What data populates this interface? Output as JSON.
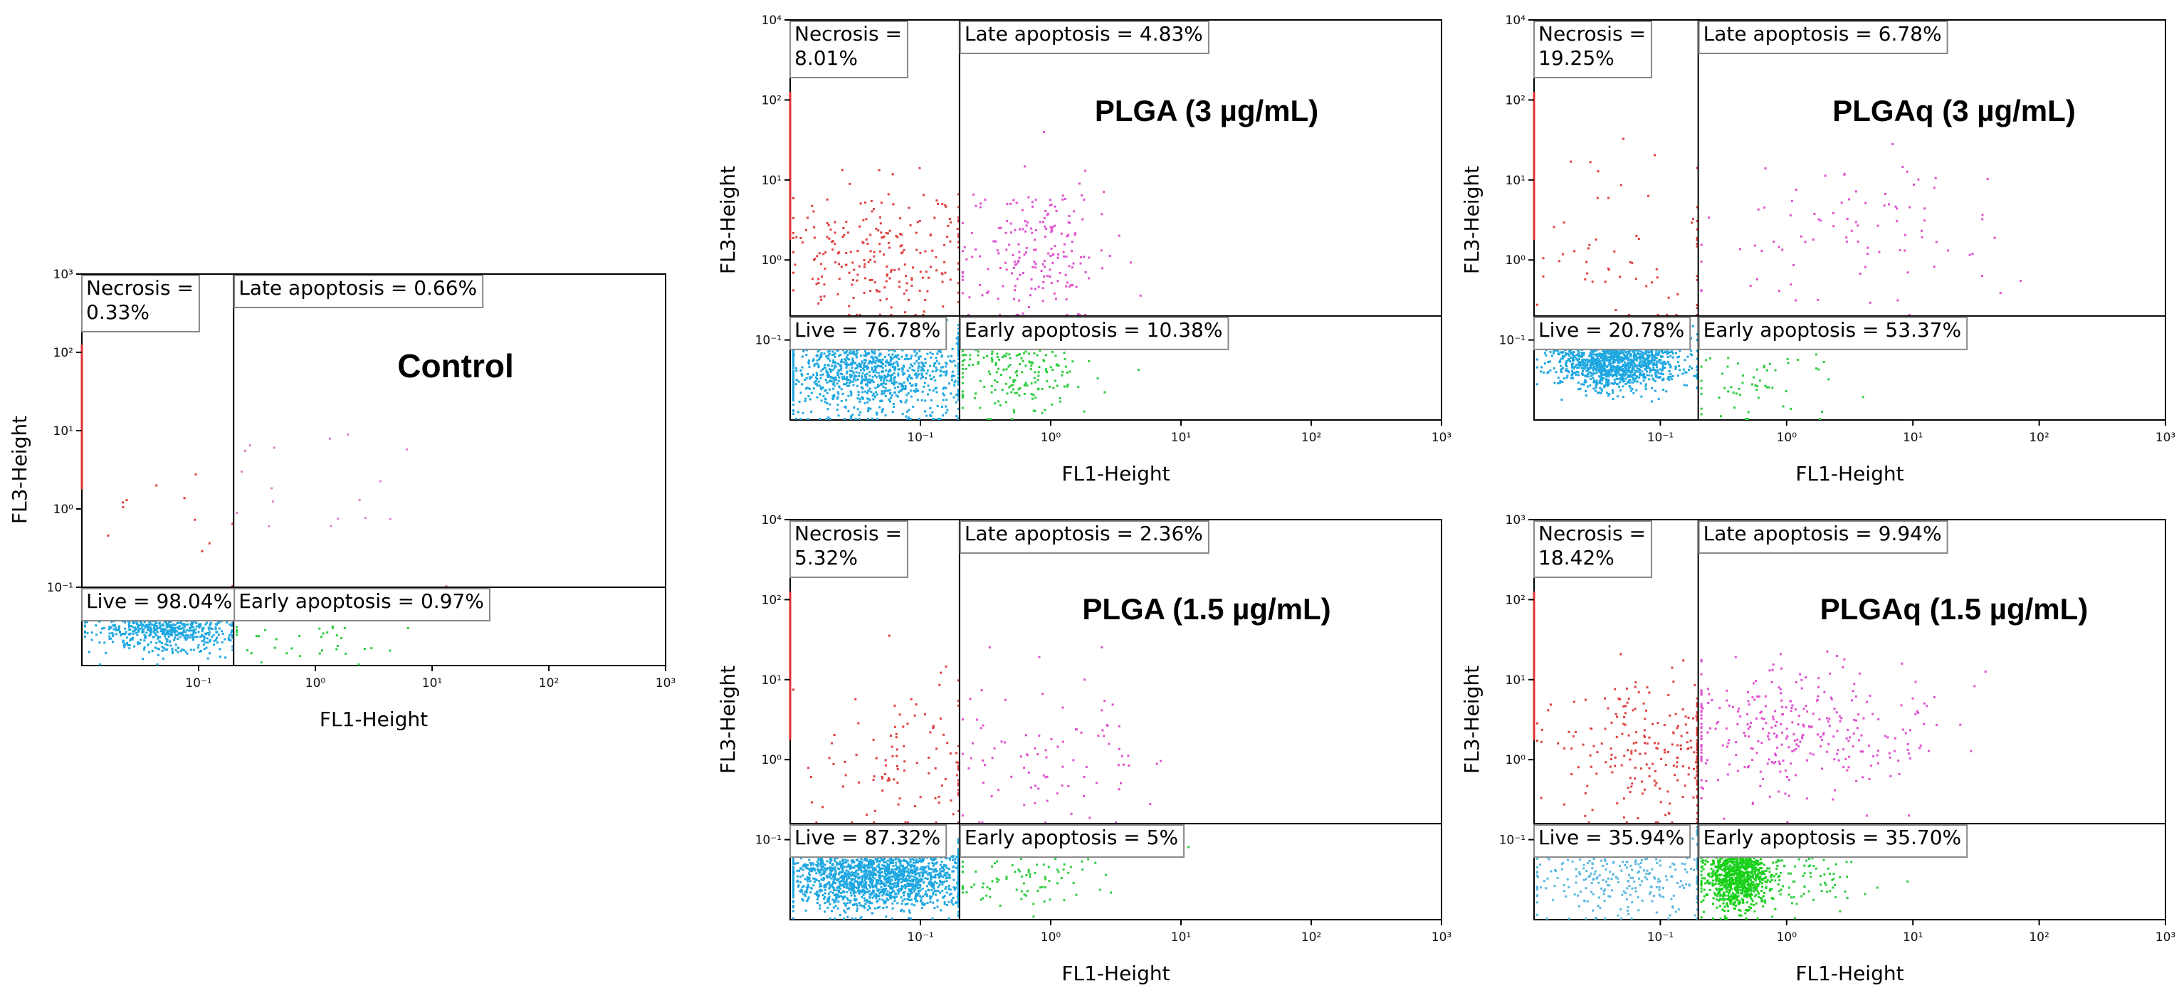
{
  "chart_data": [
    {
      "type": "scatter",
      "title": "Control",
      "xlabel": "FL1-Height",
      "ylabel": "FL3-Height",
      "x_ticks": [
        "10⁻¹",
        "10⁰",
        "10¹",
        "10²",
        "10³"
      ],
      "y_ticks": [
        "10⁻¹",
        "10⁰",
        "10¹",
        "10²",
        "10³"
      ],
      "xlim_log10": [
        -2,
        3
      ],
      "ylim_log10": [
        -2,
        3
      ],
      "quadrant_gate_log10": {
        "x": -0.7,
        "y": -1.0
      },
      "quadrants": {
        "necrosis": {
          "label": "Necrosis =",
          "value": "0.33%"
        },
        "late_apoptosis": {
          "label": "Late apoptosis =",
          "value": "0.66%"
        },
        "live": {
          "label": "Live =",
          "value": "98.04%"
        },
        "early_apoptosis": {
          "label": "Early apoptosis =",
          "value": "0.97%"
        }
      },
      "quadrant_percent": {
        "necrosis": 0.33,
        "late_apoptosis": 0.66,
        "live": 98.04,
        "early_apoptosis": 0.97
      },
      "populations_log10": [
        {
          "quadrant": "live",
          "color": "#1ea7e1",
          "count": 900,
          "cx": -1.3,
          "cy": -1.45,
          "sx": 0.28,
          "sy": 0.18
        },
        {
          "quadrant": "early_apoptosis",
          "color": "#2ecc40",
          "count": 40,
          "cx": -0.1,
          "cy": -1.6,
          "sx": 0.45,
          "sy": 0.18
        },
        {
          "quadrant": "necrosis",
          "color": "#e04040",
          "count": 12,
          "cx": -1.2,
          "cy": 0.2,
          "sx": 0.35,
          "sy": 0.6
        },
        {
          "quadrant": "late_apoptosis",
          "color": "#e080c8",
          "count": 18,
          "cx": 0.1,
          "cy": 0.4,
          "sx": 0.5,
          "sy": 0.5
        }
      ]
    },
    {
      "type": "scatter",
      "title": "PLGA (3 µg/mL)",
      "xlabel": "FL1-Height",
      "ylabel": "FL3-Height",
      "x_ticks": [
        "10⁻¹",
        "10⁰",
        "10¹",
        "10²",
        "10³"
      ],
      "y_ticks": [
        "10⁻¹",
        "10⁰",
        "10¹",
        "10²",
        "10⁴"
      ],
      "xlim_log10": [
        -2,
        3
      ],
      "ylim_log10": [
        -2,
        3
      ],
      "quadrant_gate_log10": {
        "x": -0.7,
        "y": -0.7
      },
      "quadrants": {
        "necrosis": {
          "label": "Necrosis =",
          "value": "8.01%"
        },
        "late_apoptosis": {
          "label": "Late apoptosis =",
          "value": "4.83%"
        },
        "live": {
          "label": "Live =",
          "value": "76.78%"
        },
        "early_apoptosis": {
          "label": "Early apoptosis =",
          "value": "10.38%"
        }
      },
      "quadrant_percent": {
        "necrosis": 8.01,
        "late_apoptosis": 4.83,
        "live": 76.78,
        "early_apoptosis": 10.38
      },
      "populations_log10": [
        {
          "quadrant": "live",
          "color": "#1ea7e1",
          "count": 1100,
          "cx": -1.4,
          "cy": -1.35,
          "sx": 0.38,
          "sy": 0.3
        },
        {
          "quadrant": "early_apoptosis",
          "color": "#2ecc40",
          "count": 220,
          "cx": -0.25,
          "cy": -1.35,
          "sx": 0.3,
          "sy": 0.28
        },
        {
          "quadrant": "necrosis",
          "color": "#e04040",
          "count": 230,
          "cx": -1.3,
          "cy": 0.1,
          "sx": 0.4,
          "sy": 0.4
        },
        {
          "quadrant": "late_apoptosis",
          "color": "#e050d0",
          "count": 200,
          "cx": -0.15,
          "cy": 0.1,
          "sx": 0.3,
          "sy": 0.4
        }
      ]
    },
    {
      "type": "scatter",
      "title": "PLGAq (3 µg/mL)",
      "xlabel": "FL1-Height",
      "ylabel": "FL3-Height",
      "x_ticks": [
        "10⁻¹",
        "10⁰",
        "10¹",
        "10²",
        "10³"
      ],
      "y_ticks": [
        "10⁻¹",
        "10⁰",
        "10¹",
        "10²",
        "10⁴"
      ],
      "xlim_log10": [
        -2,
        3
      ],
      "ylim_log10": [
        -2,
        3
      ],
      "quadrant_gate_log10": {
        "x": -0.7,
        "y": -0.7
      },
      "quadrants": {
        "necrosis": {
          "label": "Necrosis =",
          "value": "19.25%"
        },
        "late_apoptosis": {
          "label": "Late apoptosis =",
          "value": "6.78%"
        },
        "live": {
          "label": "Live =",
          "value": "20.78%"
        },
        "early_apoptosis": {
          "label": "Early apoptosis =",
          "value": "53.37%"
        }
      },
      "quadrant_percent": {
        "necrosis": 19.25,
        "late_apoptosis": 6.78,
        "live": 20.78,
        "early_apoptosis": 53.37
      },
      "populations_log10": [
        {
          "quadrant": "live",
          "color": "#1ea7e1",
          "count": 1300,
          "cx": -1.35,
          "cy": -1.25,
          "sx": 0.25,
          "sy": 0.18
        },
        {
          "quadrant": "early_apoptosis",
          "color": "#2ecc40",
          "count": 60,
          "cx": -0.3,
          "cy": -1.5,
          "sx": 0.35,
          "sy": 0.25
        },
        {
          "quadrant": "necrosis",
          "color": "#e04040",
          "count": 60,
          "cx": -1.1,
          "cy": 0.1,
          "sx": 0.5,
          "sy": 0.6
        },
        {
          "quadrant": "late_apoptosis",
          "color": "#e050d0",
          "count": 90,
          "cx": 0.5,
          "cy": 0.4,
          "sx": 0.7,
          "sy": 0.5
        }
      ]
    },
    {
      "type": "scatter",
      "title": "PLGA (1.5 µg/mL)",
      "xlabel": "FL1-Height",
      "ylabel": "FL3-Height",
      "x_ticks": [
        "10⁻¹",
        "10⁰",
        "10¹",
        "10²",
        "10³"
      ],
      "y_ticks": [
        "10⁻¹",
        "10⁰",
        "10¹",
        "10²",
        "10⁴"
      ],
      "xlim_log10": [
        -2,
        3
      ],
      "ylim_log10": [
        -2,
        3
      ],
      "quadrant_gate_log10": {
        "x": -0.7,
        "y": -0.8
      },
      "quadrants": {
        "necrosis": {
          "label": "Necrosis =",
          "value": "5.32%"
        },
        "late_apoptosis": {
          "label": "Late apoptosis =",
          "value": "2.36%"
        },
        "live": {
          "label": "Live =",
          "value": "87.32%"
        },
        "early_apoptosis": {
          "label": "Early apoptosis =",
          "value": "5%"
        }
      },
      "quadrant_percent": {
        "necrosis": 5.32,
        "late_apoptosis": 2.36,
        "live": 87.32,
        "early_apoptosis": 5.0
      },
      "populations_log10": [
        {
          "quadrant": "live",
          "color": "#1ea7e1",
          "count": 1800,
          "cx": -1.35,
          "cy": -1.45,
          "sx": 0.4,
          "sy": 0.2
        },
        {
          "quadrant": "early_apoptosis",
          "color": "#2ecc40",
          "count": 90,
          "cx": -0.3,
          "cy": -1.5,
          "sx": 0.35,
          "sy": 0.2
        },
        {
          "quadrant": "necrosis",
          "color": "#e04040",
          "count": 110,
          "cx": -1.2,
          "cy": 0.0,
          "sx": 0.45,
          "sy": 0.5
        },
        {
          "quadrant": "late_apoptosis",
          "color": "#e050d0",
          "count": 90,
          "cx": -0.1,
          "cy": 0.1,
          "sx": 0.4,
          "sy": 0.45
        }
      ]
    },
    {
      "type": "scatter",
      "title": "PLGAq (1.5 µg/mL)",
      "xlabel": "FL1-Height",
      "ylabel": "FL3-Height",
      "x_ticks": [
        "10⁻¹",
        "10⁰",
        "10¹",
        "10²",
        "10³"
      ],
      "y_ticks": [
        "10⁻¹",
        "10⁰",
        "10¹",
        "10²",
        "10³"
      ],
      "xlim_log10": [
        -2,
        3
      ],
      "ylim_log10": [
        -2,
        3
      ],
      "quadrant_gate_log10": {
        "x": -0.7,
        "y": -0.8
      },
      "quadrants": {
        "necrosis": {
          "label": "Necrosis =",
          "value": "18.42%"
        },
        "late_apoptosis": {
          "label": "Late apoptosis =",
          "value": "9.94%"
        },
        "live": {
          "label": "Live =",
          "value": "35.94%"
        },
        "early_apoptosis": {
          "label": "Early apoptosis =",
          "value": "35.70%"
        }
      },
      "quadrant_percent": {
        "necrosis": 18.42,
        "late_apoptosis": 9.94,
        "live": 35.94,
        "early_apoptosis": 35.7
      },
      "populations_log10": [
        {
          "quadrant": "live",
          "color": "#5ab8e0",
          "count": 350,
          "cx": -1.3,
          "cy": -1.4,
          "sx": 0.4,
          "sy": 0.3
        },
        {
          "quadrant": "early_apoptosis",
          "color": "#18d018",
          "count": 1000,
          "cx": -0.4,
          "cy": -1.4,
          "sx": 0.12,
          "sy": 0.22
        },
        {
          "quadrant": "early_apoptosis",
          "color": "#2ecc40",
          "count": 150,
          "cx": 0.0,
          "cy": -1.4,
          "sx": 0.35,
          "sy": 0.25
        },
        {
          "quadrant": "necrosis",
          "color": "#e04040",
          "count": 240,
          "cx": -1.0,
          "cy": 0.15,
          "sx": 0.4,
          "sy": 0.45
        },
        {
          "quadrant": "late_apoptosis",
          "color": "#e050d0",
          "count": 320,
          "cx": 0.0,
          "cy": 0.35,
          "sx": 0.55,
          "sy": 0.4
        }
      ]
    }
  ]
}
